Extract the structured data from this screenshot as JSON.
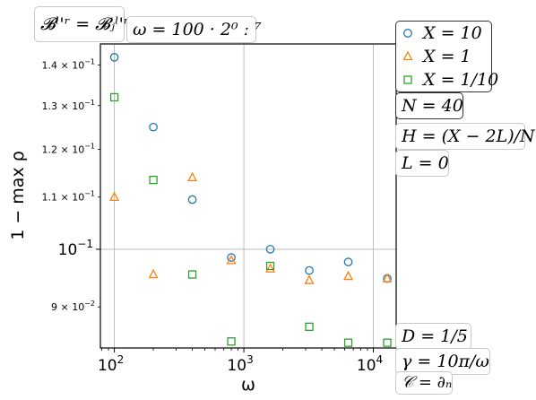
{
  "chart_data": {
    "type": "scatter",
    "xlabel": "ω",
    "ylabel": "1 − max ρ",
    "xscale": "log",
    "yscale": "log",
    "xlim": [
      78,
      15000
    ],
    "ylim": [
      0.0835,
      0.1455
    ],
    "grid": "major",
    "legend_position": "right-top",
    "x_ticks": [
      {
        "value": 100,
        "label": "10",
        "exp": "2"
      },
      {
        "value": 1000,
        "label": "10",
        "exp": "3"
      },
      {
        "value": 10000,
        "label": "10",
        "exp": "4"
      }
    ],
    "y_ticks": [
      {
        "value": 0.09,
        "label": "9 × 10",
        "exp": "−2",
        "major": false
      },
      {
        "value": 0.1,
        "label": "10",
        "exp": "−1",
        "major": true
      },
      {
        "value": 0.11,
        "label": "1.1 × 10",
        "exp": "−1",
        "major": false
      },
      {
        "value": 0.12,
        "label": "1.2 × 10",
        "exp": "−1",
        "major": false
      },
      {
        "value": 0.13,
        "label": "1.3 × 10",
        "exp": "−1",
        "major": false
      },
      {
        "value": 0.14,
        "label": "1.4 × 10",
        "exp": "−1",
        "major": false
      }
    ],
    "x": [
      100,
      200,
      400,
      800,
      1600,
      3200,
      6400,
      12800
    ],
    "series": [
      {
        "name": "X = 10",
        "marker": "circle",
        "color": "#1f77b4",
        "values": [
          0.142,
          0.125,
          0.1095,
          0.0985,
          0.1,
          0.0962,
          0.0977,
          0.0948
        ]
      },
      {
        "name": "X = 1",
        "marker": "triangle",
        "color": "#ff7f0e",
        "values": [
          0.11,
          0.0955,
          0.114,
          0.098,
          0.0965,
          0.0945,
          0.0952,
          0.0948
        ]
      },
      {
        "name": "X = 1/10",
        "marker": "square",
        "color": "#2ca02c",
        "values": [
          0.132,
          0.1135,
          0.0955,
          0.0845,
          0.097,
          0.0868,
          0.0843,
          0.0843
        ]
      }
    ]
  },
  "annotations": {
    "boundary": "𝓑ˡ'ʳ = 𝓑ⱼˡ'ʳ",
    "omega_def": "ω = 100 · 2⁰ ː ⁷",
    "n": "N = 40",
    "h": "H = (X − 2L)/N",
    "l": "L = 0",
    "d": "D = 1/5",
    "gamma": "γ = 10π/ω",
    "c": "𝒞 = ∂ₙ"
  }
}
